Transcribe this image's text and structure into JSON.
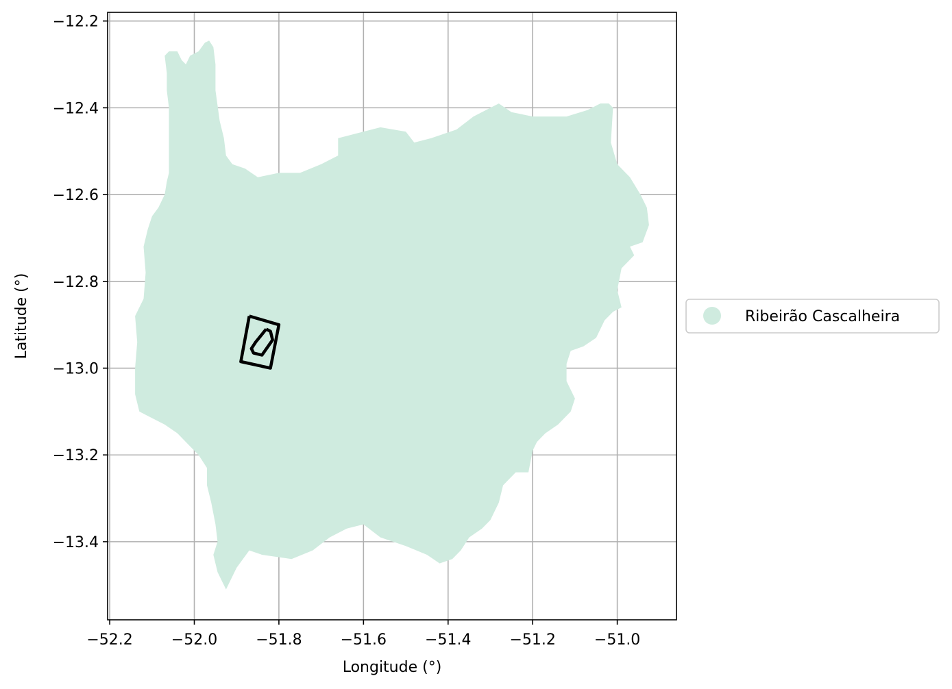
{
  "chart_data": {
    "type": "map",
    "xlabel": "Longitude (°)",
    "ylabel": "Latitude (°)",
    "xlim": [
      -52.205,
      -50.86
    ],
    "ylim": [
      -13.58,
      -12.18
    ],
    "x_ticks": [
      {
        "value": -52.2,
        "label": "−52.2"
      },
      {
        "value": -52.0,
        "label": "−52.0"
      },
      {
        "value": -51.8,
        "label": "−51.8"
      },
      {
        "value": -51.6,
        "label": "−51.6"
      },
      {
        "value": -51.4,
        "label": "−51.4"
      },
      {
        "value": -51.2,
        "label": "−51.2"
      },
      {
        "value": -51.0,
        "label": "−51.0"
      }
    ],
    "y_ticks": [
      {
        "value": -12.2,
        "label": "−12.2"
      },
      {
        "value": -12.4,
        "label": "−12.4"
      },
      {
        "value": -12.6,
        "label": "−12.6"
      },
      {
        "value": -12.8,
        "label": "−12.8"
      },
      {
        "value": -13.0,
        "label": "−13.0"
      },
      {
        "value": -13.2,
        "label": "−13.2"
      },
      {
        "value": -13.4,
        "label": "−13.4"
      }
    ],
    "grid": true,
    "legend": {
      "placement": "right",
      "entries": [
        {
          "label": "Ribeirão Cascalheira",
          "color": "#cfebdf"
        }
      ]
    },
    "municipality": {
      "name": "Ribeirão Cascalheira",
      "fill": "#cfebdf",
      "boundary": [
        [
          -52.07,
          -12.28
        ],
        [
          -52.06,
          -12.27
        ],
        [
          -52.04,
          -12.27
        ],
        [
          -52.03,
          -12.29
        ],
        [
          -52.02,
          -12.3
        ],
        [
          -52.01,
          -12.28
        ],
        [
          -51.99,
          -12.27
        ],
        [
          -51.975,
          -12.25
        ],
        [
          -51.965,
          -12.245
        ],
        [
          -51.955,
          -12.26
        ],
        [
          -51.95,
          -12.3
        ],
        [
          -51.95,
          -12.36
        ],
        [
          -51.94,
          -12.43
        ],
        [
          -51.93,
          -12.47
        ],
        [
          -51.925,
          -12.51
        ],
        [
          -51.91,
          -12.53
        ],
        [
          -51.88,
          -12.54
        ],
        [
          -51.85,
          -12.56
        ],
        [
          -51.8,
          -12.55
        ],
        [
          -51.75,
          -12.55
        ],
        [
          -51.7,
          -12.53
        ],
        [
          -51.66,
          -12.51
        ],
        [
          -51.66,
          -12.47
        ],
        [
          -51.62,
          -12.46
        ],
        [
          -51.56,
          -12.445
        ],
        [
          -51.5,
          -12.455
        ],
        [
          -51.48,
          -12.48
        ],
        [
          -51.44,
          -12.47
        ],
        [
          -51.38,
          -12.45
        ],
        [
          -51.34,
          -12.42
        ],
        [
          -51.3,
          -12.4
        ],
        [
          -51.28,
          -12.39
        ],
        [
          -51.25,
          -12.41
        ],
        [
          -51.2,
          -12.42
        ],
        [
          -51.15,
          -12.42
        ],
        [
          -51.12,
          -12.42
        ],
        [
          -51.07,
          -12.405
        ],
        [
          -51.04,
          -12.39
        ],
        [
          -51.02,
          -12.39
        ],
        [
          -51.01,
          -12.4
        ],
        [
          -51.015,
          -12.48
        ],
        [
          -51.0,
          -12.53
        ],
        [
          -50.97,
          -12.56
        ],
        [
          -50.945,
          -12.6
        ],
        [
          -50.93,
          -12.63
        ],
        [
          -50.925,
          -12.67
        ],
        [
          -50.94,
          -12.71
        ],
        [
          -50.97,
          -12.72
        ],
        [
          -50.96,
          -12.74
        ],
        [
          -50.99,
          -12.77
        ],
        [
          -51.0,
          -12.82
        ],
        [
          -50.99,
          -12.86
        ],
        [
          -51.01,
          -12.87
        ],
        [
          -51.03,
          -12.89
        ],
        [
          -51.05,
          -12.93
        ],
        [
          -51.08,
          -12.95
        ],
        [
          -51.11,
          -12.96
        ],
        [
          -51.12,
          -12.99
        ],
        [
          -51.12,
          -13.03
        ],
        [
          -51.1,
          -13.07
        ],
        [
          -51.11,
          -13.1
        ],
        [
          -51.14,
          -13.13
        ],
        [
          -51.17,
          -13.15
        ],
        [
          -51.19,
          -13.17
        ],
        [
          -51.2,
          -13.19
        ],
        [
          -51.21,
          -13.24
        ],
        [
          -51.24,
          -13.24
        ],
        [
          -51.27,
          -13.27
        ],
        [
          -51.28,
          -13.31
        ],
        [
          -51.3,
          -13.35
        ],
        [
          -51.32,
          -13.37
        ],
        [
          -51.35,
          -13.39
        ],
        [
          -51.37,
          -13.42
        ],
        [
          -51.39,
          -13.44
        ],
        [
          -51.42,
          -13.45
        ],
        [
          -51.45,
          -13.43
        ],
        [
          -51.5,
          -13.41
        ],
        [
          -51.56,
          -13.39
        ],
        [
          -51.6,
          -13.36
        ],
        [
          -51.64,
          -13.37
        ],
        [
          -51.68,
          -13.39
        ],
        [
          -51.72,
          -13.42
        ],
        [
          -51.77,
          -13.44
        ],
        [
          -51.84,
          -13.43
        ],
        [
          -51.87,
          -13.42
        ],
        [
          -51.9,
          -13.46
        ],
        [
          -51.925,
          -13.51
        ],
        [
          -51.935,
          -13.49
        ],
        [
          -51.945,
          -13.47
        ],
        [
          -51.955,
          -13.43
        ],
        [
          -51.945,
          -13.4
        ],
        [
          -51.95,
          -13.36
        ],
        [
          -51.96,
          -13.31
        ],
        [
          -51.97,
          -13.27
        ],
        [
          -51.97,
          -13.23
        ],
        [
          -51.99,
          -13.2
        ],
        [
          -52.01,
          -13.18
        ],
        [
          -52.04,
          -13.15
        ],
        [
          -52.07,
          -13.13
        ],
        [
          -52.11,
          -13.11
        ],
        [
          -52.13,
          -13.1
        ],
        [
          -52.14,
          -13.06
        ],
        [
          -52.14,
          -13.0
        ],
        [
          -52.135,
          -12.94
        ],
        [
          -52.14,
          -12.88
        ],
        [
          -52.12,
          -12.84
        ],
        [
          -52.115,
          -12.78
        ],
        [
          -52.12,
          -12.72
        ],
        [
          -52.11,
          -12.68
        ],
        [
          -52.1,
          -12.65
        ],
        [
          -52.085,
          -12.63
        ],
        [
          -52.07,
          -12.6
        ],
        [
          -52.065,
          -12.57
        ],
        [
          -52.06,
          -12.55
        ],
        [
          -52.06,
          -12.51
        ],
        [
          -52.06,
          -12.48
        ],
        [
          -52.06,
          -12.44
        ],
        [
          -52.06,
          -12.4
        ],
        [
          -52.065,
          -12.36
        ],
        [
          -52.065,
          -12.32
        ],
        [
          -52.07,
          -12.28
        ]
      ]
    },
    "outlines": [
      {
        "name": "outer-rectangle",
        "color": "#000000",
        "points": [
          [
            -51.87,
            -12.88
          ],
          [
            -51.8,
            -12.9
          ],
          [
            -51.82,
            -13.0
          ],
          [
            -51.89,
            -12.985
          ],
          [
            -51.87,
            -12.88
          ]
        ]
      },
      {
        "name": "inner-polygon",
        "color": "#000000",
        "points": [
          [
            -51.83,
            -12.91
          ],
          [
            -51.855,
            -12.94
          ],
          [
            -51.865,
            -12.955
          ],
          [
            -51.86,
            -12.965
          ],
          [
            -51.84,
            -12.97
          ],
          [
            -51.815,
            -12.935
          ],
          [
            -51.82,
            -12.915
          ],
          [
            -51.83,
            -12.91
          ]
        ]
      }
    ]
  }
}
